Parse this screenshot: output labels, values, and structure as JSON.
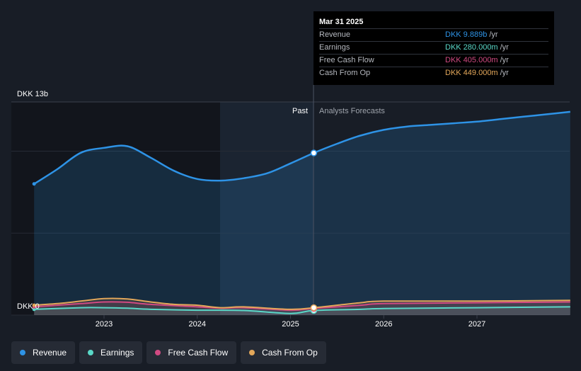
{
  "chart_data": {
    "type": "area",
    "y_axis_top_label": "DKK 13b",
    "y_axis_bottom_label": "DKK 0",
    "ylim": [
      0,
      13
    ],
    "x_ticks": [
      "2023",
      "2024",
      "2025",
      "2026",
      "2027"
    ],
    "past_label": "Past",
    "forecast_label": "Analysts Forecasts",
    "series": [
      {
        "name": "Revenue",
        "color": "#2e93e6",
        "x": [
          2022.25,
          2022.5,
          2022.75,
          2023.0,
          2023.25,
          2023.5,
          2023.75,
          2024.0,
          2024.25,
          2024.5,
          2024.75,
          2025.0,
          2025.25,
          2025.5,
          2025.75,
          2026.0,
          2026.25,
          2026.5,
          2026.75,
          2027.0,
          2027.25,
          2027.5,
          2027.75,
          2028.0
        ],
        "values": [
          8.0,
          8.9,
          9.9,
          10.2,
          10.3,
          9.6,
          8.8,
          8.3,
          8.2,
          8.35,
          8.65,
          9.25,
          9.889,
          10.45,
          10.95,
          11.3,
          11.5,
          11.6,
          11.7,
          11.8,
          11.95,
          12.1,
          12.25,
          12.4
        ]
      },
      {
        "name": "Earnings",
        "color": "#5ad8c8",
        "x": [
          2022.25,
          2022.75,
          2023.0,
          2023.25,
          2023.5,
          2024.0,
          2024.5,
          2025.0,
          2025.25,
          2025.75,
          2026.0,
          2027.0,
          2028.0
        ],
        "values": [
          0.35,
          0.45,
          0.45,
          0.42,
          0.35,
          0.3,
          0.28,
          0.1,
          0.28,
          0.35,
          0.4,
          0.45,
          0.5
        ]
      },
      {
        "name": "Free Cash Flow",
        "color": "#d14a82",
        "x": [
          2022.25,
          2022.75,
          2023.0,
          2023.25,
          2023.5,
          2024.0,
          2024.25,
          2024.5,
          2025.0,
          2025.25,
          2025.75,
          2026.0,
          2027.0,
          2028.0
        ],
        "values": [
          0.5,
          0.7,
          0.8,
          0.78,
          0.65,
          0.5,
          0.42,
          0.45,
          0.3,
          0.405,
          0.6,
          0.7,
          0.75,
          0.8
        ]
      },
      {
        "name": "Cash From Op",
        "color": "#e3a75a",
        "x": [
          2022.25,
          2022.5,
          2022.75,
          2023.0,
          2023.25,
          2023.5,
          2023.75,
          2024.0,
          2024.25,
          2024.5,
          2025.0,
          2025.25,
          2025.5,
          2025.75,
          2026.0,
          2027.0,
          2028.0
        ],
        "values": [
          0.6,
          0.7,
          0.85,
          1.0,
          0.98,
          0.8,
          0.65,
          0.6,
          0.45,
          0.5,
          0.35,
          0.449,
          0.6,
          0.75,
          0.85,
          0.85,
          0.9
        ]
      }
    ],
    "highlight_x": 2025.25,
    "legend_position": "bottom-left"
  },
  "tooltip": {
    "date": "Mar 31 2025",
    "rows": [
      {
        "label": "Revenue",
        "value": "DKK 9.889b",
        "unit": "/yr",
        "color": "#2e93e6"
      },
      {
        "label": "Earnings",
        "value": "DKK 280.000m",
        "unit": "/yr",
        "color": "#5ad8c8"
      },
      {
        "label": "Free Cash Flow",
        "value": "DKK 405.000m",
        "unit": "/yr",
        "color": "#d14a82"
      },
      {
        "label": "Cash From Op",
        "value": "DKK 449.000m",
        "unit": "/yr",
        "color": "#e3a75a"
      }
    ]
  },
  "legend": [
    {
      "label": "Revenue",
      "color": "#2e93e6"
    },
    {
      "label": "Earnings",
      "color": "#5ad8c8"
    },
    {
      "label": "Free Cash Flow",
      "color": "#d14a82"
    },
    {
      "label": "Cash From Op",
      "color": "#e3a75a"
    }
  ]
}
